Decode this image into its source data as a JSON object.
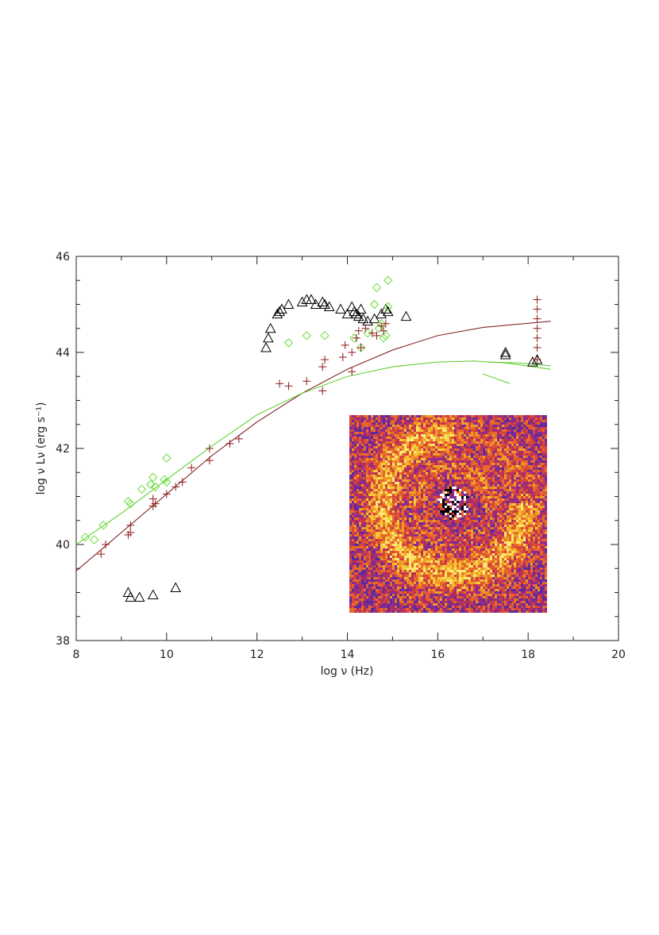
{
  "chart_data": {
    "type": "scatter",
    "title": "",
    "xlabel": "log ν (Hz)",
    "ylabel": "log ν Lν (erg s⁻¹)",
    "xlim": [
      8,
      20
    ],
    "ylim": [
      38,
      46
    ],
    "x_ticks": [
      "8",
      "10",
      "12",
      "14",
      "16",
      "18",
      "20"
    ],
    "y_ticks": [
      "38",
      "40",
      "42",
      "44",
      "46"
    ],
    "grid": false,
    "legend": "none",
    "colors": {
      "triangles": "#000000",
      "diamonds": "#66dd33",
      "crosses": "#8b1a1a",
      "curve_dark_red": "#7a1010",
      "curve_green": "#55cc22"
    },
    "series": [
      {
        "marker": "triangle",
        "points": [
          [
            9.15,
            39.0
          ],
          [
            9.2,
            38.9
          ],
          [
            9.4,
            38.9
          ],
          [
            9.7,
            38.95
          ],
          [
            10.2,
            39.1
          ],
          [
            12.2,
            44.1
          ],
          [
            12.25,
            44.3
          ],
          [
            12.3,
            44.5
          ],
          [
            12.45,
            44.8
          ],
          [
            12.5,
            44.85
          ],
          [
            12.55,
            44.9
          ],
          [
            12.7,
            45.0
          ],
          [
            13.0,
            45.05
          ],
          [
            13.1,
            45.1
          ],
          [
            13.2,
            45.1
          ],
          [
            13.3,
            45.0
          ],
          [
            13.45,
            45.05
          ],
          [
            13.5,
            45.0
          ],
          [
            13.6,
            44.95
          ],
          [
            13.85,
            44.9
          ],
          [
            14.0,
            44.8
          ],
          [
            14.1,
            44.95
          ],
          [
            14.15,
            44.85
          ],
          [
            14.2,
            44.8
          ],
          [
            14.25,
            44.75
          ],
          [
            14.3,
            44.9
          ],
          [
            14.35,
            44.7
          ],
          [
            14.45,
            44.65
          ],
          [
            14.6,
            44.7
          ],
          [
            14.75,
            44.8
          ],
          [
            14.85,
            44.9
          ],
          [
            14.9,
            44.85
          ],
          [
            15.3,
            44.75
          ],
          [
            17.5,
            44.0
          ],
          [
            17.5,
            43.95
          ],
          [
            18.1,
            43.8
          ],
          [
            18.2,
            43.85
          ]
        ]
      },
      {
        "marker": "diamond",
        "points": [
          [
            8.2,
            40.15
          ],
          [
            8.4,
            40.1
          ],
          [
            8.6,
            40.4
          ],
          [
            9.15,
            40.9
          ],
          [
            9.2,
            40.85
          ],
          [
            9.45,
            41.15
          ],
          [
            9.65,
            41.25
          ],
          [
            9.7,
            41.4
          ],
          [
            9.75,
            41.2
          ],
          [
            9.95,
            41.35
          ],
          [
            10.0,
            41.3
          ],
          [
            10.0,
            41.8
          ],
          [
            12.7,
            44.2
          ],
          [
            13.1,
            44.35
          ],
          [
            13.5,
            44.35
          ],
          [
            14.15,
            44.3
          ],
          [
            14.3,
            44.1
          ],
          [
            14.45,
            44.4
          ],
          [
            14.6,
            45.0
          ],
          [
            14.65,
            45.35
          ],
          [
            14.7,
            44.5
          ],
          [
            14.75,
            44.6
          ],
          [
            14.8,
            44.3
          ],
          [
            14.85,
            44.35
          ],
          [
            14.9,
            45.5
          ],
          [
            14.9,
            44.95
          ]
        ]
      },
      {
        "marker": "cross",
        "points": [
          [
            8.55,
            39.8
          ],
          [
            8.65,
            40.0
          ],
          [
            9.15,
            40.2
          ],
          [
            9.2,
            40.25
          ],
          [
            9.2,
            40.4
          ],
          [
            9.7,
            40.8
          ],
          [
            9.75,
            40.85
          ],
          [
            9.7,
            40.95
          ],
          [
            10.0,
            41.05
          ],
          [
            10.2,
            41.2
          ],
          [
            10.35,
            41.3
          ],
          [
            10.55,
            41.6
          ],
          [
            10.95,
            41.75
          ],
          [
            10.95,
            42.0
          ],
          [
            11.4,
            42.1
          ],
          [
            11.6,
            42.2
          ],
          [
            12.5,
            43.35
          ],
          [
            12.7,
            43.3
          ],
          [
            13.1,
            43.4
          ],
          [
            13.45,
            43.2
          ],
          [
            13.45,
            43.7
          ],
          [
            13.5,
            43.85
          ],
          [
            13.9,
            43.9
          ],
          [
            13.95,
            44.15
          ],
          [
            14.1,
            44.0
          ],
          [
            14.1,
            43.6
          ],
          [
            14.2,
            44.3
          ],
          [
            14.25,
            44.45
          ],
          [
            14.3,
            44.1
          ],
          [
            14.4,
            44.5
          ],
          [
            14.55,
            44.4
          ],
          [
            14.65,
            44.35
          ],
          [
            14.75,
            44.55
          ],
          [
            14.8,
            44.45
          ],
          [
            14.85,
            44.6
          ],
          [
            18.2,
            43.85
          ],
          [
            18.2,
            44.1
          ],
          [
            18.2,
            44.3
          ],
          [
            18.2,
            44.5
          ],
          [
            18.2,
            44.7
          ],
          [
            18.2,
            44.9
          ],
          [
            18.2,
            45.1
          ]
        ]
      },
      {
        "marker": "line",
        "points": [
          [
            8.0,
            39.45
          ],
          [
            9.0,
            40.25
          ],
          [
            10.0,
            41.05
          ],
          [
            11.0,
            41.85
          ],
          [
            12.0,
            42.55
          ],
          [
            13.0,
            43.15
          ],
          [
            14.0,
            43.65
          ],
          [
            15.0,
            44.05
          ],
          [
            16.0,
            44.35
          ],
          [
            17.0,
            44.52
          ],
          [
            18.5,
            44.65
          ]
        ]
      },
      {
        "marker": "line",
        "points": [
          [
            8.0,
            40.0
          ],
          [
            9.0,
            40.65
          ],
          [
            10.0,
            41.35
          ],
          [
            11.0,
            42.05
          ],
          [
            12.0,
            42.7
          ],
          [
            13.0,
            43.15
          ],
          [
            14.0,
            43.5
          ],
          [
            15.0,
            43.7
          ],
          [
            16.0,
            43.8
          ],
          [
            16.8,
            43.82
          ],
          [
            17.5,
            43.78
          ],
          [
            18.5,
            43.65
          ]
        ]
      },
      {
        "marker": "line",
        "points": [
          [
            17.1,
            43.8
          ],
          [
            17.8,
            43.78
          ],
          [
            18.5,
            43.72
          ]
        ]
      },
      {
        "marker": "line",
        "points": [
          [
            17.0,
            43.55
          ],
          [
            17.3,
            43.45
          ],
          [
            17.6,
            43.35
          ]
        ]
      }
    ]
  }
}
